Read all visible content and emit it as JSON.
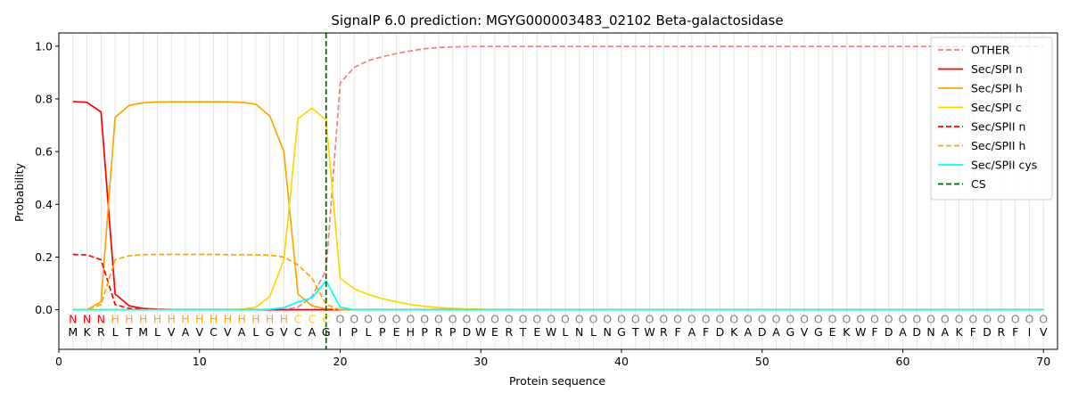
{
  "chart_data": {
    "type": "line",
    "title": "SignalP 6.0 prediction: MGYG000003483_02102 Beta-galactosidase",
    "xlabel": "Protein sequence",
    "ylabel": "Probability",
    "xlim": [
      0,
      71
    ],
    "ylim": [
      -0.15,
      1.05
    ],
    "xticks": [
      0,
      10,
      20,
      30,
      40,
      50,
      60,
      70
    ],
    "yticks": [
      0.0,
      0.2,
      0.4,
      0.6,
      0.8,
      1.0
    ],
    "cleavage_site": 19,
    "legend_position": "top-right",
    "sequence": [
      "M",
      "K",
      "R",
      "L",
      "T",
      "M",
      "L",
      "V",
      "A",
      "V",
      "C",
      "V",
      "A",
      "L",
      "G",
      "V",
      "C",
      "A",
      "G",
      "I",
      "P",
      "L",
      "P",
      "E",
      "H",
      "P",
      "R",
      "P",
      "D",
      "W",
      "E",
      "R",
      "T",
      "E",
      "W",
      "L",
      "N",
      "L",
      "N",
      "G",
      "T",
      "W",
      "R",
      "F",
      "A",
      "F",
      "D",
      "K",
      "A",
      "D",
      "A",
      "G",
      "V",
      "G",
      "E",
      "K",
      "W",
      "F",
      "D",
      "A",
      "D",
      "N",
      "A",
      "K",
      "F",
      "D",
      "R",
      "F",
      "I",
      "V"
    ],
    "region_labels": [
      "N",
      "N",
      "N",
      "H",
      "H",
      "H",
      "H",
      "H",
      "H",
      "H",
      "H",
      "H",
      "H",
      "H",
      "H",
      "H",
      "C",
      "C",
      "C",
      "O",
      "O",
      "O",
      "O",
      "O",
      "O",
      "O",
      "O",
      "O",
      "O",
      "O",
      "O",
      "O",
      "O",
      "O",
      "O",
      "O",
      "O",
      "O",
      "O",
      "O",
      "O",
      "O",
      "O",
      "O",
      "O",
      "O",
      "O",
      "O",
      "O",
      "O",
      "O",
      "O",
      "O",
      "O",
      "O",
      "O",
      "O",
      "O",
      "O",
      "O",
      "O",
      "O",
      "O",
      "O",
      "O",
      "O",
      "O",
      "O",
      "O",
      "O"
    ],
    "region_colors": {
      "N": "#ff0000",
      "H": "#ffa500",
      "C": "#ffd700",
      "O": "#808080"
    },
    "series": [
      {
        "name": "OTHER",
        "color": "#f08080",
        "dash": "dashed",
        "values": [
          0.0,
          0.0,
          0.0,
          0.0,
          0.0,
          0.0,
          0.0,
          0.0,
          0.0,
          0.0,
          0.0,
          0.0,
          0.0,
          0.0,
          0.0,
          0.0,
          0.01,
          0.05,
          0.15,
          0.86,
          0.92,
          0.945,
          0.96,
          0.972,
          0.982,
          0.99,
          0.995,
          0.997,
          0.998,
          0.999,
          0.999,
          0.999,
          0.999,
          0.999,
          0.999,
          0.999,
          0.999,
          0.999,
          0.999,
          0.999,
          0.999,
          0.999,
          0.999,
          0.999,
          0.999,
          0.999,
          0.999,
          0.999,
          0.999,
          0.999,
          0.999,
          0.999,
          0.999,
          0.999,
          0.999,
          0.999,
          0.999,
          0.999,
          0.999,
          0.999,
          0.999,
          0.999,
          0.999,
          0.999,
          0.999,
          0.999,
          0.999,
          0.999,
          0.999,
          0.999
        ]
      },
      {
        "name": "Sec/SPI n",
        "color": "#ff0000",
        "dash": "solid",
        "values": [
          0.79,
          0.787,
          0.75,
          0.06,
          0.015,
          0.005,
          0.002,
          0.001,
          0.0,
          0.0,
          0.0,
          0.0,
          0.0,
          0.0,
          0.0,
          0.0,
          0.0,
          0.0,
          0.0,
          0.0,
          0.0,
          0.0,
          0.0,
          0.0,
          0.0,
          0.0,
          0.0,
          0.0,
          0.0,
          0.0,
          0.0,
          0.0,
          0.0,
          0.0,
          0.0,
          0.0,
          0.0,
          0.0,
          0.0,
          0.0,
          0.0,
          0.0,
          0.0,
          0.0,
          0.0,
          0.0,
          0.0,
          0.0,
          0.0,
          0.0,
          0.0,
          0.0,
          0.0,
          0.0,
          0.0,
          0.0,
          0.0,
          0.0,
          0.0,
          0.0,
          0.0,
          0.0,
          0.0,
          0.0,
          0.0,
          0.0,
          0.0,
          0.0,
          0.0,
          0.0
        ]
      },
      {
        "name": "Sec/SPI h",
        "color": "#ffa500",
        "dash": "solid",
        "values": [
          0.0,
          0.0,
          0.03,
          0.73,
          0.775,
          0.785,
          0.788,
          0.789,
          0.789,
          0.789,
          0.789,
          0.789,
          0.787,
          0.78,
          0.735,
          0.6,
          0.06,
          0.015,
          0.003,
          0.0,
          0.0,
          0.0,
          0.0,
          0.0,
          0.0,
          0.0,
          0.0,
          0.0,
          0.0,
          0.0,
          0.0,
          0.0,
          0.0,
          0.0,
          0.0,
          0.0,
          0.0,
          0.0,
          0.0,
          0.0,
          0.0,
          0.0,
          0.0,
          0.0,
          0.0,
          0.0,
          0.0,
          0.0,
          0.0,
          0.0,
          0.0,
          0.0,
          0.0,
          0.0,
          0.0,
          0.0,
          0.0,
          0.0,
          0.0,
          0.0,
          0.0,
          0.0,
          0.0,
          0.0,
          0.0,
          0.0,
          0.0,
          0.0,
          0.0,
          0.0
        ]
      },
      {
        "name": "Sec/SPI c",
        "color": "#ffd700",
        "dash": "solid",
        "values": [
          0.0,
          0.0,
          0.0,
          0.0,
          0.0,
          0.0,
          0.0,
          0.0,
          0.0,
          0.0,
          0.0,
          0.0,
          0.002,
          0.01,
          0.05,
          0.19,
          0.725,
          0.765,
          0.72,
          0.12,
          0.08,
          0.058,
          0.042,
          0.03,
          0.02,
          0.013,
          0.008,
          0.005,
          0.003,
          0.002,
          0.0,
          0.0,
          0.0,
          0.0,
          0.0,
          0.0,
          0.0,
          0.0,
          0.0,
          0.0,
          0.0,
          0.0,
          0.0,
          0.0,
          0.0,
          0.0,
          0.0,
          0.0,
          0.0,
          0.0,
          0.0,
          0.0,
          0.0,
          0.0,
          0.0,
          0.0,
          0.0,
          0.0,
          0.0,
          0.0,
          0.0,
          0.0,
          0.0,
          0.0,
          0.0,
          0.0,
          0.0,
          0.0,
          0.0,
          0.0
        ]
      },
      {
        "name": "Sec/SPII n",
        "color": "#ff0000",
        "dash": "dashed",
        "values": [
          0.21,
          0.208,
          0.19,
          0.02,
          0.005,
          0.002,
          0.001,
          0.0,
          0.0,
          0.0,
          0.0,
          0.0,
          0.0,
          0.0,
          0.0,
          0.0,
          0.0,
          0.0,
          0.0,
          0.0,
          0.0,
          0.0,
          0.0,
          0.0,
          0.0,
          0.0,
          0.0,
          0.0,
          0.0,
          0.0,
          0.0,
          0.0,
          0.0,
          0.0,
          0.0,
          0.0,
          0.0,
          0.0,
          0.0,
          0.0,
          0.0,
          0.0,
          0.0,
          0.0,
          0.0,
          0.0,
          0.0,
          0.0,
          0.0,
          0.0,
          0.0,
          0.0,
          0.0,
          0.0,
          0.0,
          0.0,
          0.0,
          0.0,
          0.0,
          0.0,
          0.0,
          0.0,
          0.0,
          0.0,
          0.0,
          0.0,
          0.0,
          0.0,
          0.0,
          0.0
        ]
      },
      {
        "name": "Sec/SPII h",
        "color": "#ffa500",
        "dash": "dashed",
        "values": [
          0.0,
          0.0,
          0.02,
          0.19,
          0.205,
          0.209,
          0.21,
          0.21,
          0.21,
          0.21,
          0.21,
          0.209,
          0.209,
          0.208,
          0.207,
          0.2,
          0.17,
          0.12,
          0.02,
          0.0,
          0.0,
          0.0,
          0.0,
          0.0,
          0.0,
          0.0,
          0.0,
          0.0,
          0.0,
          0.0,
          0.0,
          0.0,
          0.0,
          0.0,
          0.0,
          0.0,
          0.0,
          0.0,
          0.0,
          0.0,
          0.0,
          0.0,
          0.0,
          0.0,
          0.0,
          0.0,
          0.0,
          0.0,
          0.0,
          0.0,
          0.0,
          0.0,
          0.0,
          0.0,
          0.0,
          0.0,
          0.0,
          0.0,
          0.0,
          0.0,
          0.0,
          0.0,
          0.0,
          0.0,
          0.0,
          0.0,
          0.0,
          0.0,
          0.0,
          0.0
        ]
      },
      {
        "name": "Sec/SPII cys",
        "color": "#00ffff",
        "dash": "solid",
        "values": [
          0.0,
          0.0,
          0.0,
          0.0,
          0.0,
          0.0,
          0.0,
          0.0,
          0.0,
          0.0,
          0.0,
          0.0,
          0.0,
          0.0,
          0.002,
          0.008,
          0.03,
          0.045,
          0.11,
          0.01,
          0.0,
          0.0,
          0.0,
          0.0,
          0.0,
          0.0,
          0.0,
          0.0,
          0.0,
          0.0,
          0.0,
          0.0,
          0.0,
          0.0,
          0.0,
          0.0,
          0.0,
          0.0,
          0.0,
          0.0,
          0.0,
          0.0,
          0.0,
          0.0,
          0.0,
          0.0,
          0.0,
          0.0,
          0.0,
          0.0,
          0.0,
          0.0,
          0.0,
          0.0,
          0.0,
          0.0,
          0.0,
          0.0,
          0.0,
          0.0,
          0.0,
          0.0,
          0.0,
          0.0,
          0.0,
          0.0,
          0.0,
          0.0,
          0.0,
          0.0
        ]
      }
    ],
    "cs_legend": {
      "name": "CS",
      "color": "#006400",
      "dash": "dashed"
    }
  }
}
